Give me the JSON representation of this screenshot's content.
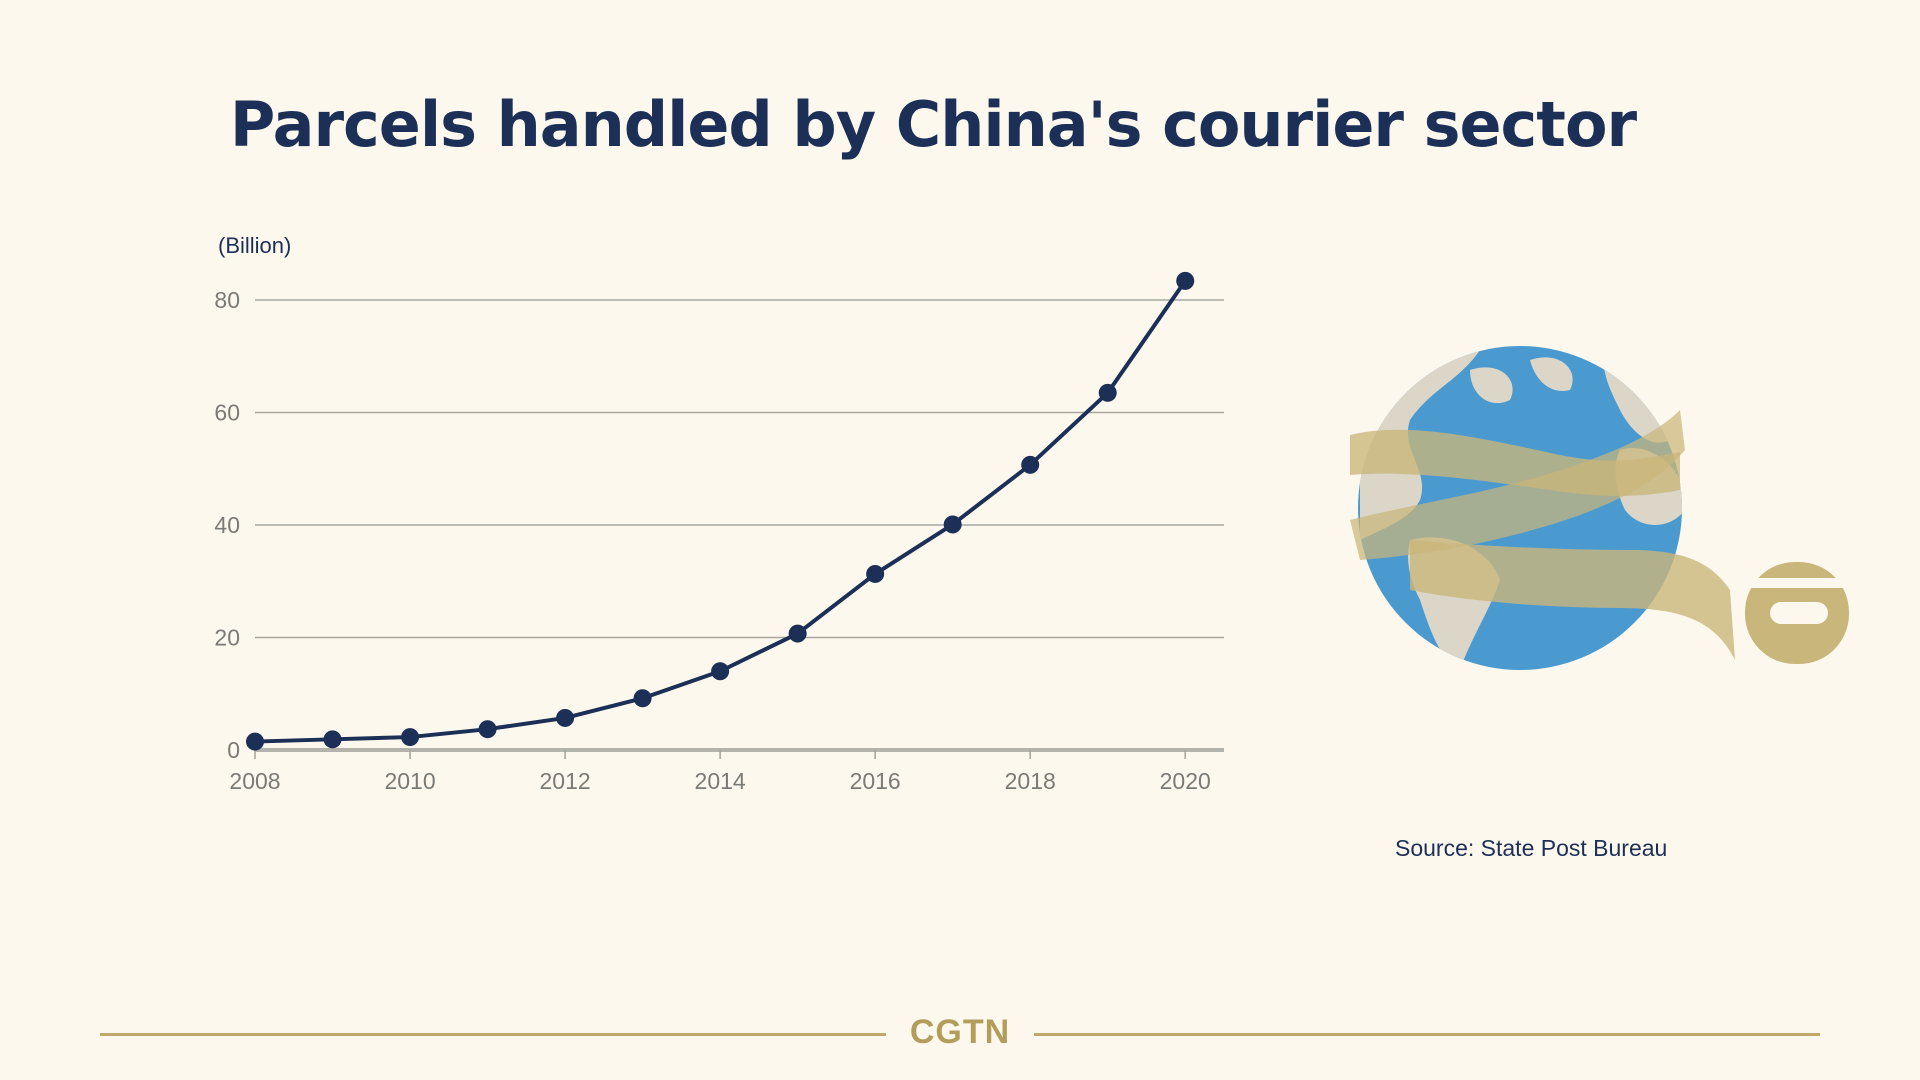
{
  "title": "Parcels handled by China's courier sector",
  "source": "Source: State Post Bureau",
  "brand": "CGTN",
  "colors": {
    "background": "#fdf8ee",
    "title": "#1c2f57",
    "line": "#1c2f57",
    "grid": "#a7a7a0",
    "tick_text": "#7a7a76",
    "accent_gold": "#bfa96a",
    "globe_ocean": "#4a9ad0",
    "globe_land": "#dcd6c8"
  },
  "chart_data": {
    "type": "line",
    "ylabel": "(Billion)",
    "x": [
      2008,
      2009,
      2010,
      2011,
      2012,
      2013,
      2014,
      2015,
      2016,
      2017,
      2018,
      2019,
      2020
    ],
    "series": [
      {
        "values": [
          1.5,
          1.9,
          2.3,
          3.7,
          5.7,
          9.2,
          14.0,
          20.7,
          31.3,
          40.1,
          50.7,
          63.5,
          83.4
        ]
      }
    ],
    "xticks": [
      2008,
      2010,
      2012,
      2014,
      2016,
      2018,
      2020
    ],
    "yticks": [
      0,
      20,
      40,
      60,
      80
    ],
    "xlim": [
      2008,
      2020.5
    ],
    "ylim": [
      0,
      80
    ],
    "grid": true,
    "markers": true
  }
}
